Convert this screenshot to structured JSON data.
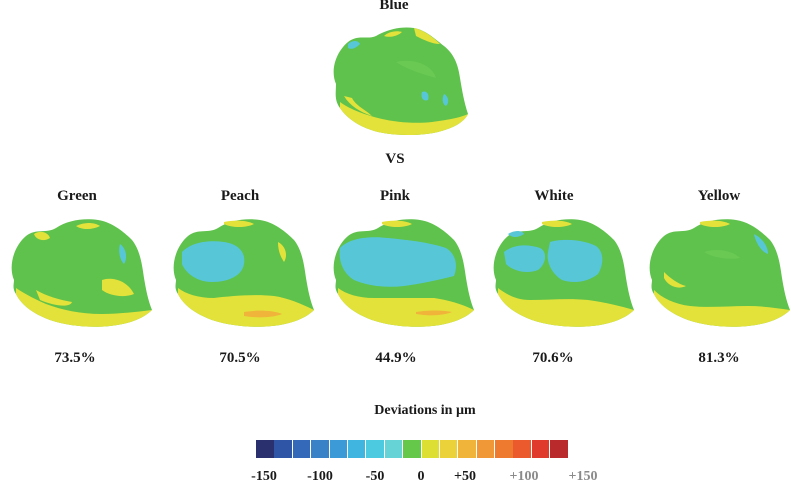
{
  "reference": {
    "title": "Blue"
  },
  "comparison_label": "VS",
  "samples": [
    {
      "name": "Green",
      "percent": "73.5%"
    },
    {
      "name": "Peach",
      "percent": "70.5%"
    },
    {
      "name": "Pink",
      "percent": "44.9%"
    },
    {
      "name": "White",
      "percent": "70.6%"
    },
    {
      "name": "Yellow",
      "percent": "81.3%"
    }
  ],
  "legend": {
    "title": "Deviations in µm",
    "colors": [
      "#2a2f6e",
      "#2f55a6",
      "#3468b8",
      "#3a82c8",
      "#3c9ad6",
      "#3fb5e0",
      "#4ccbe0",
      "#66d3d6",
      "#66c84a",
      "#dde033",
      "#ecd23a",
      "#f0b43a",
      "#f09838",
      "#ee7a30",
      "#ea5a2c",
      "#e03a2c",
      "#b82a2c"
    ],
    "ticks": [
      "-150",
      "-100",
      "-50",
      "0",
      "+50",
      "+100",
      "+150"
    ]
  }
}
